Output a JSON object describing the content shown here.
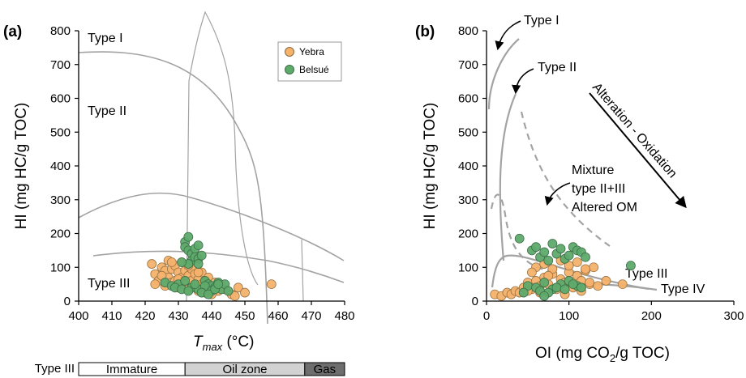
{
  "figure": {
    "panel_a_label": "(a)",
    "panel_b_label": "(b)"
  },
  "chart_data": [
    {
      "type": "scatter",
      "panel": "(a)",
      "xlabel_main": "T",
      "xlabel_sub": "max",
      "xlabel_unit": " (°C)",
      "ylabel": "HI (mg HC/g TOC)",
      "xlim": [
        400,
        480
      ],
      "ylim": [
        0,
        800
      ],
      "xticks": [
        400,
        410,
        420,
        430,
        440,
        450,
        460,
        470,
        480
      ],
      "yticks": [
        0,
        100,
        200,
        300,
        400,
        500,
        600,
        700,
        800
      ],
      "region_labels": [
        "Type I",
        "Type II",
        "Type III"
      ],
      "legend": {
        "position": "top-right",
        "entries": [
          "Yebra",
          "Belsué"
        ]
      },
      "colors": {
        "Yebra": "#f5b26b",
        "Belsué": "#5eaa6b",
        "curve": "#a3a3a3"
      },
      "maturity_bar": {
        "label": "Type III",
        "zones": [
          {
            "name": "Immature",
            "from": 400,
            "to": 432,
            "color": "#ffffff"
          },
          {
            "name": "Oil zone",
            "from": 432,
            "to": 468,
            "color": "#d2d2d2"
          },
          {
            "name": "Gas",
            "from": 468,
            "to": 480,
            "color": "#6e6e6e"
          }
        ]
      },
      "series": [
        {
          "name": "Yebra",
          "x": [
            422,
            423,
            424,
            425,
            426,
            426,
            427,
            427,
            428,
            428,
            429,
            429,
            430,
            430,
            431,
            431,
            432,
            432,
            433,
            433,
            434,
            434,
            435,
            435,
            436,
            436,
            437,
            437,
            438,
            438,
            439,
            439,
            440,
            441,
            442,
            443,
            444,
            446,
            447,
            448,
            450,
            458,
            423,
            425,
            428,
            430,
            433,
            436,
            440
          ],
          "y": [
            110,
            80,
            60,
            100,
            90,
            45,
            120,
            70,
            95,
            55,
            105,
            60,
            85,
            40,
            115,
            70,
            90,
            50,
            75,
            35,
            95,
            60,
            80,
            45,
            65,
            30,
            85,
            50,
            60,
            25,
            45,
            70,
            40,
            55,
            30,
            45,
            35,
            20,
            15,
            40,
            25,
            50,
            50,
            75,
            115,
            65,
            105,
            85,
            20
          ]
        },
        {
          "name": "Belsué",
          "x": [
            432,
            432,
            433,
            433,
            434,
            434,
            435,
            435,
            436,
            436,
            437,
            433,
            431,
            438,
            439,
            440,
            441,
            442,
            443,
            444,
            445,
            426,
            428,
            430,
            432,
            434,
            436,
            438,
            440,
            429,
            431,
            433,
            435,
            437,
            439,
            441,
            436,
            442
          ],
          "y": [
            175,
            160,
            190,
            150,
            140,
            120,
            155,
            130,
            165,
            125,
            135,
            110,
            115,
            60,
            50,
            45,
            40,
            55,
            35,
            50,
            30,
            55,
            45,
            50,
            60,
            40,
            35,
            45,
            30,
            40,
            35,
            30,
            50,
            25,
            20,
            35,
            110,
            50
          ]
        }
      ]
    },
    {
      "type": "scatter",
      "panel": "(b)",
      "xlabel_pre": "OI (mg CO",
      "xlabel_sub": "2",
      "xlabel_post": "/g TOC)",
      "ylabel": "HI (mg HC/g TOC)",
      "xlim": [
        0,
        300
      ],
      "ylim": [
        0,
        800
      ],
      "xticks": [
        0,
        100,
        200,
        300
      ],
      "yticks": [
        0,
        100,
        200,
        300,
        400,
        500,
        600,
        700,
        800
      ],
      "annotations": [
        "Type I",
        "Type II",
        "Alteration - Oxidation",
        "Mixture",
        "type II+III",
        "Altered OM",
        "Type III",
        "Type IV"
      ],
      "series": [
        {
          "name": "Yebra",
          "x": [
            10,
            18,
            25,
            30,
            35,
            40,
            45,
            50,
            55,
            60,
            65,
            70,
            75,
            80,
            85,
            90,
            95,
            100,
            105,
            110,
            115,
            120,
            125,
            130,
            60,
            70,
            80,
            90,
            100,
            110,
            120,
            50,
            65,
            85,
            95,
            105,
            115,
            125,
            135,
            145,
            165,
            55,
            75
          ],
          "y": [
            20,
            15,
            25,
            20,
            30,
            25,
            40,
            55,
            35,
            60,
            45,
            70,
            50,
            80,
            40,
            65,
            55,
            85,
            45,
            75,
            60,
            90,
            50,
            100,
            100,
            110,
            95,
            120,
            105,
            115,
            95,
            30,
            25,
            35,
            20,
            40,
            30,
            55,
            45,
            60,
            50,
            85,
            75
          ]
        },
        {
          "name": "Belsué",
          "x": [
            40,
            55,
            60,
            65,
            70,
            75,
            80,
            85,
            90,
            95,
            100,
            105,
            110,
            115,
            120,
            50,
            60,
            70,
            80,
            90,
            100,
            110,
            65,
            75,
            85,
            95,
            105,
            115,
            175,
            45,
            70
          ],
          "y": [
            185,
            150,
            160,
            130,
            145,
            120,
            170,
            140,
            155,
            125,
            135,
            160,
            150,
            145,
            130,
            45,
            40,
            55,
            35,
            50,
            60,
            45,
            30,
            25,
            40,
            35,
            50,
            40,
            105,
            25,
            15
          ]
        }
      ]
    }
  ]
}
